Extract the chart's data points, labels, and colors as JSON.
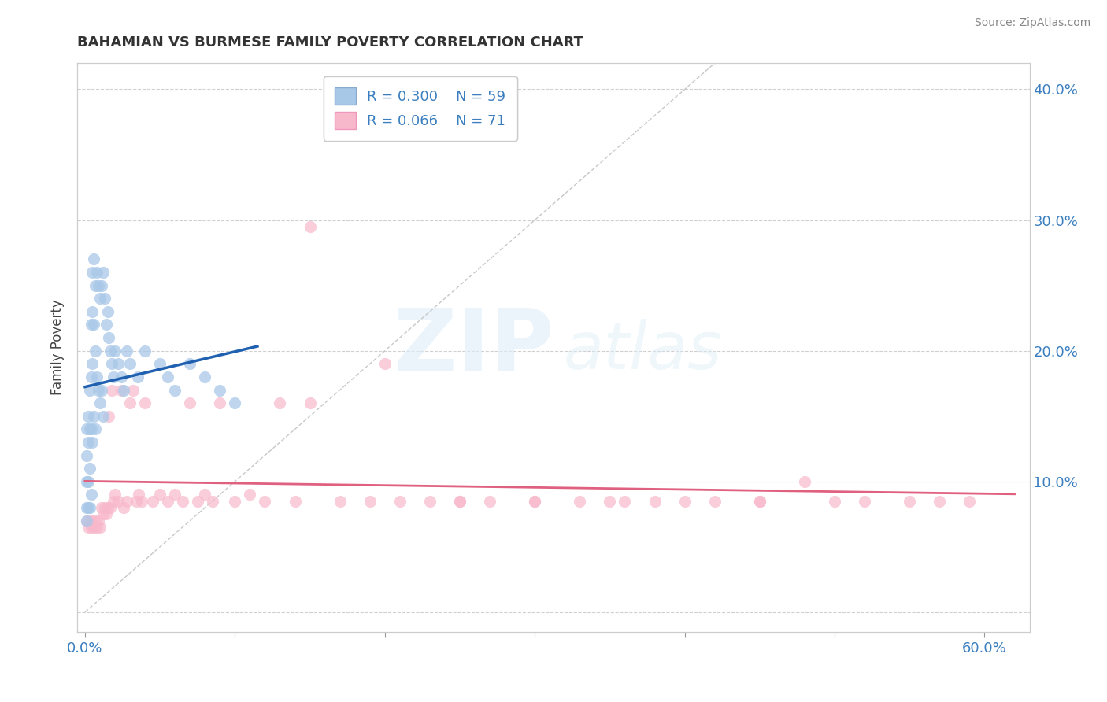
{
  "title": "BAHAMIAN VS BURMESE FAMILY POVERTY CORRELATION CHART",
  "source_text": "Source: ZipAtlas.com",
  "ylabel": "Family Poverty",
  "xlim": [
    -0.005,
    0.63
  ],
  "ylim": [
    -0.015,
    0.42
  ],
  "legend_r_blue": "R = 0.300",
  "legend_n_blue": "N = 59",
  "legend_r_pink": "R = 0.066",
  "legend_n_pink": "N = 71",
  "color_blue": "#a8c8e8",
  "color_pink": "#f8b8cc",
  "color_blue_line": "#2060b0",
  "color_pink_line": "#e06080",
  "color_diag": "#c8c8c8",
  "background_color": "#ffffff",
  "blue_x": [
    0.001,
    0.001,
    0.001,
    0.001,
    0.001,
    0.002,
    0.002,
    0.002,
    0.002,
    0.003,
    0.003,
    0.003,
    0.003,
    0.004,
    0.004,
    0.004,
    0.004,
    0.005,
    0.005,
    0.005,
    0.005,
    0.006,
    0.006,
    0.006,
    0.007,
    0.007,
    0.007,
    0.008,
    0.008,
    0.009,
    0.009,
    0.01,
    0.01,
    0.011,
    0.011,
    0.012,
    0.012,
    0.013,
    0.014,
    0.015,
    0.016,
    0.017,
    0.018,
    0.019,
    0.02,
    0.022,
    0.024,
    0.026,
    0.028,
    0.03,
    0.035,
    0.04,
    0.05,
    0.055,
    0.06,
    0.07,
    0.08,
    0.09,
    0.1
  ],
  "blue_y": [
    0.14,
    0.12,
    0.1,
    0.08,
    0.07,
    0.15,
    0.13,
    0.1,
    0.08,
    0.17,
    0.14,
    0.11,
    0.08,
    0.22,
    0.18,
    0.14,
    0.09,
    0.26,
    0.23,
    0.19,
    0.13,
    0.27,
    0.22,
    0.15,
    0.25,
    0.2,
    0.14,
    0.26,
    0.18,
    0.25,
    0.17,
    0.24,
    0.16,
    0.25,
    0.17,
    0.26,
    0.15,
    0.24,
    0.22,
    0.23,
    0.21,
    0.2,
    0.19,
    0.18,
    0.2,
    0.19,
    0.18,
    0.17,
    0.2,
    0.19,
    0.18,
    0.2,
    0.19,
    0.18,
    0.17,
    0.19,
    0.18,
    0.17,
    0.16
  ],
  "pink_x": [
    0.001,
    0.002,
    0.003,
    0.004,
    0.005,
    0.006,
    0.007,
    0.008,
    0.009,
    0.01,
    0.011,
    0.012,
    0.013,
    0.014,
    0.015,
    0.016,
    0.017,
    0.018,
    0.019,
    0.02,
    0.022,
    0.024,
    0.026,
    0.028,
    0.03,
    0.032,
    0.034,
    0.036,
    0.038,
    0.04,
    0.045,
    0.05,
    0.055,
    0.06,
    0.065,
    0.07,
    0.075,
    0.08,
    0.085,
    0.09,
    0.1,
    0.11,
    0.12,
    0.13,
    0.14,
    0.15,
    0.17,
    0.19,
    0.21,
    0.23,
    0.25,
    0.27,
    0.3,
    0.33,
    0.36,
    0.38,
    0.4,
    0.42,
    0.45,
    0.48,
    0.5,
    0.52,
    0.55,
    0.57,
    0.59,
    0.15,
    0.2,
    0.25,
    0.3,
    0.35,
    0.45
  ],
  "pink_y": [
    0.07,
    0.065,
    0.07,
    0.065,
    0.07,
    0.065,
    0.07,
    0.065,
    0.07,
    0.065,
    0.08,
    0.075,
    0.08,
    0.075,
    0.08,
    0.15,
    0.08,
    0.17,
    0.085,
    0.09,
    0.085,
    0.17,
    0.08,
    0.085,
    0.16,
    0.17,
    0.085,
    0.09,
    0.085,
    0.16,
    0.085,
    0.09,
    0.085,
    0.09,
    0.085,
    0.16,
    0.085,
    0.09,
    0.085,
    0.16,
    0.085,
    0.09,
    0.085,
    0.16,
    0.085,
    0.16,
    0.085,
    0.085,
    0.085,
    0.085,
    0.085,
    0.085,
    0.085,
    0.085,
    0.085,
    0.085,
    0.085,
    0.085,
    0.085,
    0.1,
    0.085,
    0.085,
    0.085,
    0.085,
    0.085,
    0.295,
    0.19,
    0.085,
    0.085,
    0.085,
    0.085
  ]
}
